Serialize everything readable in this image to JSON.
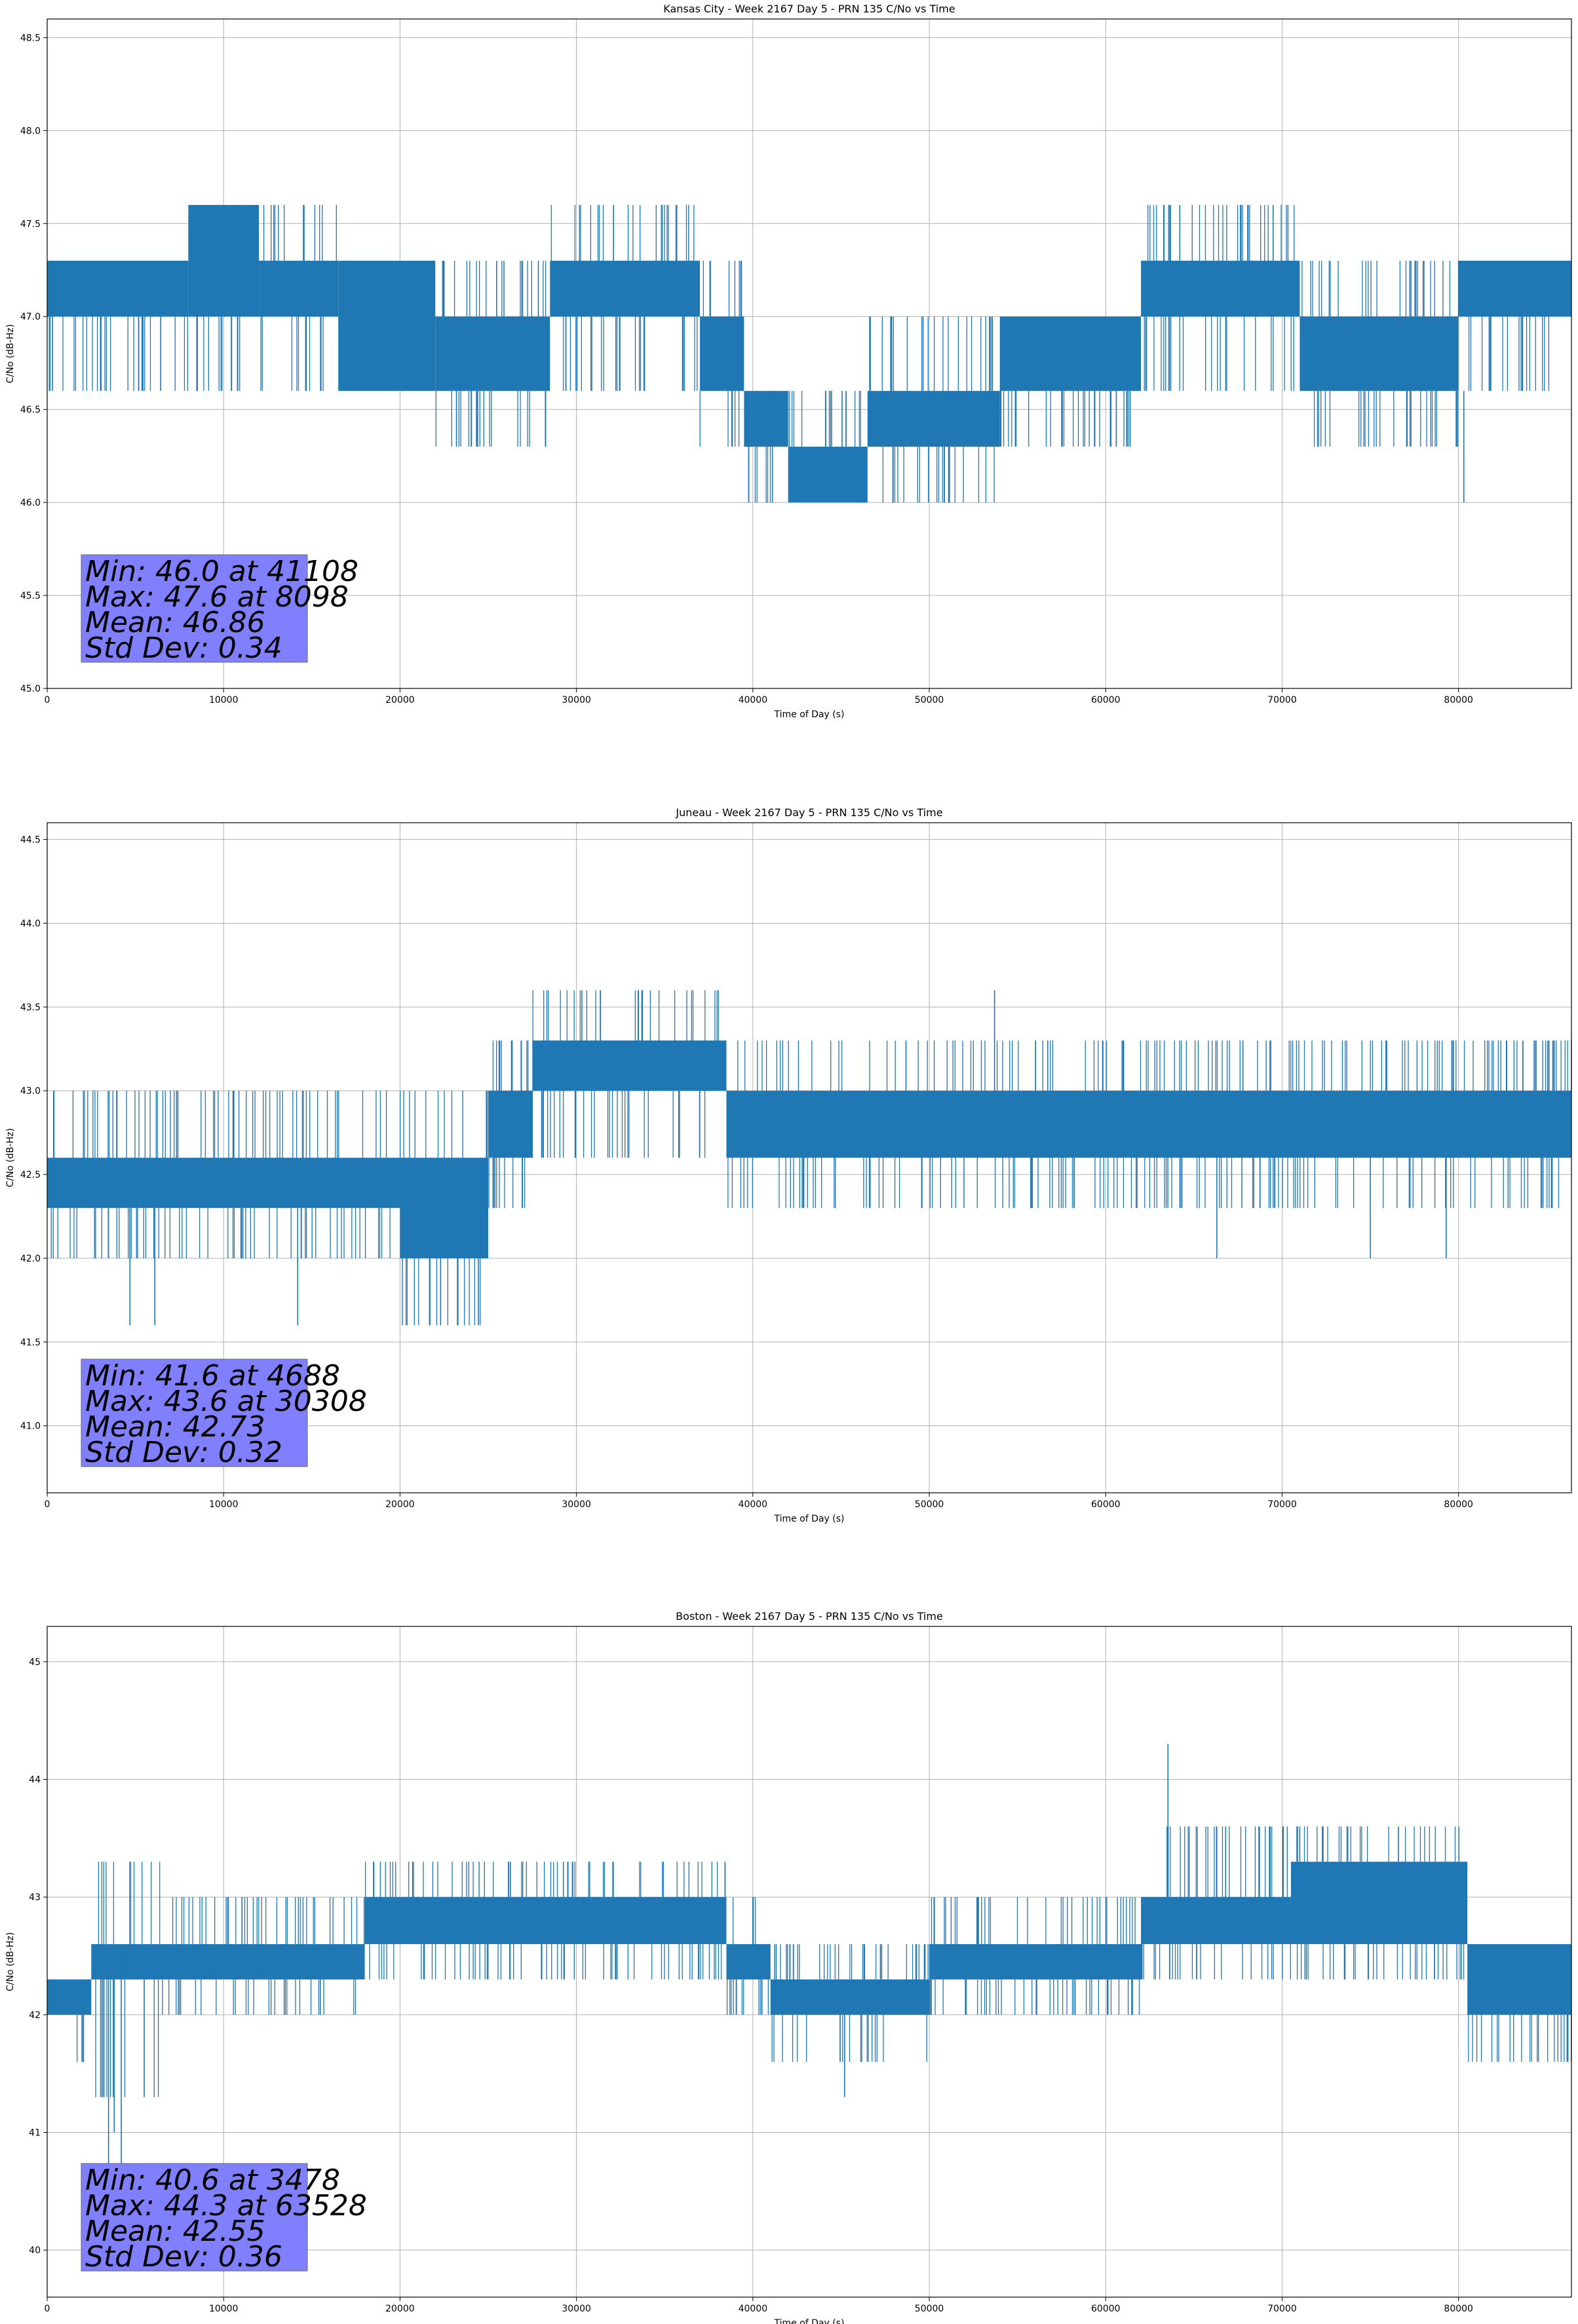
{
  "chart_data": [
    {
      "type": "line",
      "title": "Kansas City - Week 2167 Day 5 - PRN 135 C/No vs Time",
      "xlabel": "Time of Day (s)",
      "ylabel": "C/No (dB-Hz)",
      "xlim": [
        0,
        86400
      ],
      "ylim": [
        45.0,
        48.6
      ],
      "xticks": [
        0,
        10000,
        20000,
        30000,
        40000,
        50000,
        60000,
        70000,
        80000
      ],
      "yticks": [
        45.0,
        45.5,
        46.0,
        46.5,
        47.0,
        47.5,
        48.0,
        48.5
      ],
      "ytick_decimals": 1,
      "grid": true,
      "series_color": "#1f77b4",
      "stats_box_color": "#8080ff",
      "stats": [
        "Min: 46.0 at 41108",
        "Max: 47.6 at 8098",
        "Mean: 46.86",
        "Std Dev: 0.34"
      ],
      "bands": [
        {
          "x": [
            0,
            8000
          ],
          "y": [
            47.0,
            47.3
          ],
          "spread": [
            46.6,
            47.3
          ]
        },
        {
          "x": [
            8000,
            12000
          ],
          "y": [
            47.0,
            47.6
          ],
          "spread": [
            46.6,
            47.6
          ]
        },
        {
          "x": [
            12000,
            16500
          ],
          "y": [
            47.0,
            47.3
          ],
          "spread": [
            46.6,
            47.6
          ]
        },
        {
          "x": [
            16500,
            22000
          ],
          "y": [
            46.6,
            47.3
          ],
          "spread": [
            46.6,
            47.3
          ]
        },
        {
          "x": [
            22000,
            28500
          ],
          "y": [
            46.6,
            47.0
          ],
          "spread": [
            46.3,
            47.3
          ]
        },
        {
          "x": [
            28500,
            37000
          ],
          "y": [
            47.0,
            47.3
          ],
          "spread": [
            46.6,
            47.6
          ]
        },
        {
          "x": [
            37000,
            39500
          ],
          "y": [
            46.6,
            47.0
          ],
          "spread": [
            46.3,
            47.3
          ]
        },
        {
          "x": [
            39500,
            42000
          ],
          "y": [
            46.3,
            46.6
          ],
          "spread": [
            46.0,
            46.6
          ]
        },
        {
          "x": [
            42000,
            46500
          ],
          "y": [
            46.0,
            46.3
          ],
          "spread": [
            46.0,
            46.6
          ]
        },
        {
          "x": [
            46500,
            54000
          ],
          "y": [
            46.3,
            46.6
          ],
          "spread": [
            46.0,
            47.0
          ]
        },
        {
          "x": [
            54000,
            62000
          ],
          "y": [
            46.6,
            47.0
          ],
          "spread": [
            46.3,
            47.0
          ]
        },
        {
          "x": [
            62000,
            71000
          ],
          "y": [
            47.0,
            47.3
          ],
          "spread": [
            46.6,
            47.6
          ]
        },
        {
          "x": [
            71000,
            80000
          ],
          "y": [
            46.6,
            47.0
          ],
          "spread": [
            46.3,
            47.3
          ]
        },
        {
          "x": [
            80000,
            86400
          ],
          "y": [
            47.0,
            47.3
          ],
          "spread": [
            46.6,
            47.3
          ]
        }
      ],
      "spikes": [
        {
          "x": 300,
          "y": [
            46.6,
            47.3
          ]
        },
        {
          "x": 23200,
          "y": [
            46.3,
            47.0
          ]
        },
        {
          "x": 32100,
          "y": [
            47.0,
            47.6
          ]
        },
        {
          "x": 41108,
          "y": [
            46.0,
            46.6
          ]
        },
        {
          "x": 64200,
          "y": [
            47.0,
            47.6
          ]
        },
        {
          "x": 80300,
          "y": [
            46.0,
            46.6
          ]
        }
      ]
    },
    {
      "type": "line",
      "title": "Juneau - Week 2167 Day 5 - PRN 135 C/No vs Time",
      "xlabel": "Time of Day (s)",
      "ylabel": "C/No (dB-Hz)",
      "xlim": [
        0,
        86400
      ],
      "ylim": [
        40.6,
        44.6
      ],
      "xticks": [
        0,
        10000,
        20000,
        30000,
        40000,
        50000,
        60000,
        70000,
        80000
      ],
      "yticks": [
        41.0,
        41.5,
        42.0,
        42.5,
        43.0,
        43.5,
        44.0,
        44.5
      ],
      "ytick_decimals": 1,
      "grid": true,
      "series_color": "#1f77b4",
      "stats_box_color": "#8080ff",
      "stats": [
        "Min: 41.6 at 4688",
        "Max: 43.6 at 30308",
        "Mean: 42.73",
        "Std Dev: 0.32"
      ],
      "bands": [
        {
          "x": [
            0,
            20000
          ],
          "y": [
            42.3,
            42.6
          ],
          "spread": [
            42.0,
            43.0
          ]
        },
        {
          "x": [
            20000,
            25000
          ],
          "y": [
            42.0,
            42.6
          ],
          "spread": [
            41.6,
            43.0
          ]
        },
        {
          "x": [
            25000,
            27500
          ],
          "y": [
            42.6,
            43.0
          ],
          "spread": [
            42.3,
            43.3
          ]
        },
        {
          "x": [
            27500,
            38500
          ],
          "y": [
            43.0,
            43.3
          ],
          "spread": [
            42.6,
            43.6
          ]
        },
        {
          "x": [
            38500,
            86400
          ],
          "y": [
            42.6,
            43.0
          ],
          "spread": [
            42.3,
            43.3
          ]
        }
      ],
      "spikes": [
        {
          "x": 4688,
          "y": [
            41.6,
            42.3
          ]
        },
        {
          "x": 6100,
          "y": [
            41.6,
            42.3
          ]
        },
        {
          "x": 14200,
          "y": [
            41.6,
            42.3
          ]
        },
        {
          "x": 22300,
          "y": [
            41.6,
            42.3
          ]
        },
        {
          "x": 30308,
          "y": [
            43.0,
            43.6
          ]
        },
        {
          "x": 33500,
          "y": [
            43.0,
            43.6
          ]
        },
        {
          "x": 53700,
          "y": [
            43.0,
            43.6
          ]
        },
        {
          "x": 66300,
          "y": [
            42.0,
            42.6
          ]
        },
        {
          "x": 75000,
          "y": [
            42.0,
            42.6
          ]
        },
        {
          "x": 79300,
          "y": [
            42.0,
            42.6
          ]
        }
      ]
    },
    {
      "type": "line",
      "title": "Boston - Week 2167 Day 5 - PRN 135 C/No vs Time",
      "xlabel": "Time of Day (s)",
      "ylabel": "C/No (dB-Hz)",
      "xlim": [
        0,
        86400
      ],
      "ylim": [
        39.6,
        45.3
      ],
      "xticks": [
        0,
        10000,
        20000,
        30000,
        40000,
        50000,
        60000,
        70000,
        80000
      ],
      "yticks": [
        40,
        41,
        42,
        43,
        44,
        45
      ],
      "ytick_decimals": 0,
      "grid": true,
      "series_color": "#1f77b4",
      "stats_box_color": "#8080ff",
      "stats": [
        "Min: 40.6 at 3478",
        "Max: 44.3 at 63528",
        "Mean: 42.55",
        "Std Dev: 0.36"
      ],
      "bands": [
        {
          "x": [
            0,
            2500
          ],
          "y": [
            42.0,
            42.3
          ],
          "spread": [
            41.6,
            42.3
          ]
        },
        {
          "x": [
            2500,
            6500
          ],
          "y": [
            42.3,
            42.6
          ],
          "spread": [
            41.3,
            43.3
          ]
        },
        {
          "x": [
            6500,
            18000
          ],
          "y": [
            42.3,
            42.6
          ],
          "spread": [
            42.0,
            43.0
          ]
        },
        {
          "x": [
            18000,
            38500
          ],
          "y": [
            42.6,
            43.0
          ],
          "spread": [
            42.3,
            43.3
          ]
        },
        {
          "x": [
            38500,
            41000
          ],
          "y": [
            42.3,
            42.6
          ],
          "spread": [
            42.0,
            43.0
          ]
        },
        {
          "x": [
            41000,
            50000
          ],
          "y": [
            42.0,
            42.3
          ],
          "spread": [
            41.6,
            42.6
          ]
        },
        {
          "x": [
            50000,
            62000
          ],
          "y": [
            42.3,
            42.6
          ],
          "spread": [
            42.0,
            43.0
          ]
        },
        {
          "x": [
            62000,
            70500
          ],
          "y": [
            42.6,
            43.0
          ],
          "spread": [
            42.3,
            43.6
          ]
        },
        {
          "x": [
            70500,
            80500
          ],
          "y": [
            42.6,
            43.3
          ],
          "spread": [
            42.3,
            43.6
          ]
        },
        {
          "x": [
            80500,
            86400
          ],
          "y": [
            42.0,
            42.6
          ],
          "spread": [
            41.6,
            42.6
          ]
        }
      ],
      "spikes": [
        {
          "x": 3478,
          "y": [
            40.6,
            42.3
          ]
        },
        {
          "x": 3800,
          "y": [
            41.0,
            42.3
          ]
        },
        {
          "x": 4200,
          "y": [
            40.6,
            42.6
          ]
        },
        {
          "x": 5500,
          "y": [
            41.3,
            42.3
          ]
        },
        {
          "x": 45200,
          "y": [
            41.3,
            42.0
          ]
        },
        {
          "x": 63528,
          "y": [
            43.0,
            44.3
          ]
        },
        {
          "x": 66800,
          "y": [
            43.0,
            43.6
          ]
        },
        {
          "x": 71000,
          "y": [
            43.0,
            43.6
          ]
        },
        {
          "x": 86200,
          "y": [
            41.6,
            42.3
          ]
        }
      ]
    }
  ]
}
